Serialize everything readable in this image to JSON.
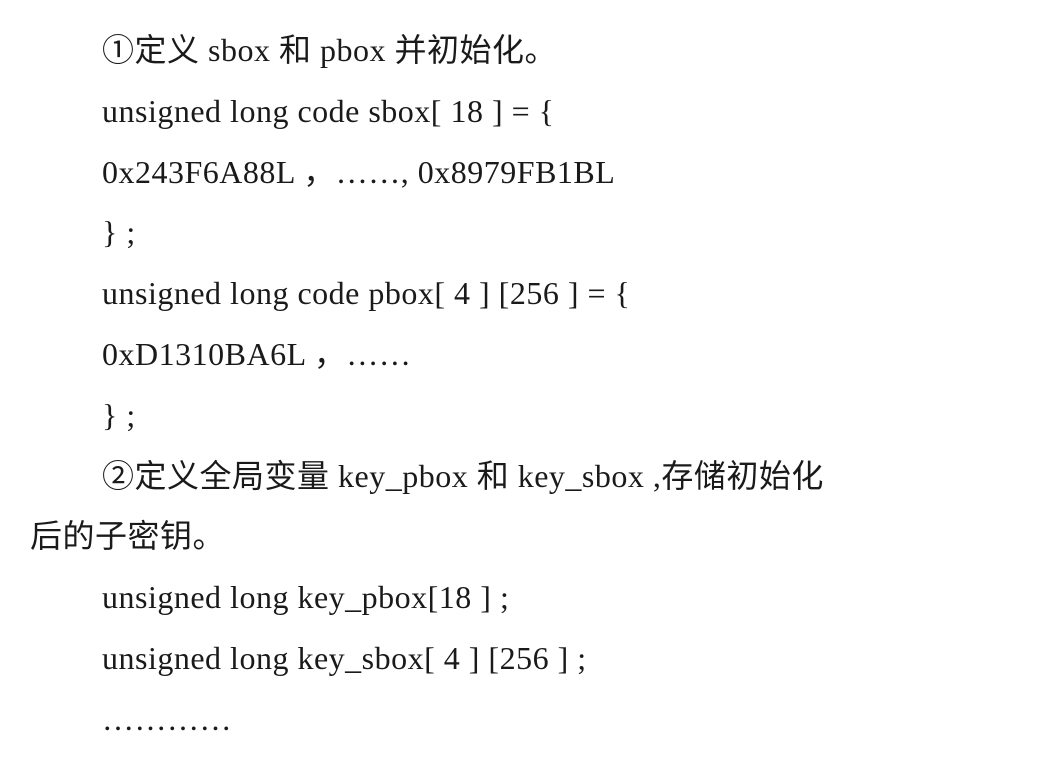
{
  "lines": [
    {
      "indent": true,
      "text": "①定义 sbox 和 pbox 并初始化。"
    },
    {
      "indent": true,
      "text": "unsigned long code sbox[ 18 ] = {"
    },
    {
      "indent": true,
      "text": "0x243F6A88L ，……, 0x8979FB1BL"
    },
    {
      "indent": true,
      "text": "} ;"
    },
    {
      "indent": true,
      "text": "unsigned long code pbox[ 4 ] [256 ] = {"
    },
    {
      "indent": true,
      "text": "0xD1310BA6L ，……"
    },
    {
      "indent": true,
      "text": "} ;"
    },
    {
      "indent": true,
      "text": "②定义全局变量 key_pbox 和 key_sbox ,存储初始化"
    },
    {
      "indent": false,
      "text": "后的子密钥。"
    },
    {
      "indent": true,
      "text": "unsigned long key_pbox[18 ] ;"
    },
    {
      "indent": true,
      "text": "unsigned long key_sbox[ 4 ] [256 ] ;"
    },
    {
      "indent": true,
      "text": "…………"
    }
  ],
  "colors": {
    "background": "#ffffff",
    "text": "#1a1a1a"
  },
  "fontsize": 32
}
